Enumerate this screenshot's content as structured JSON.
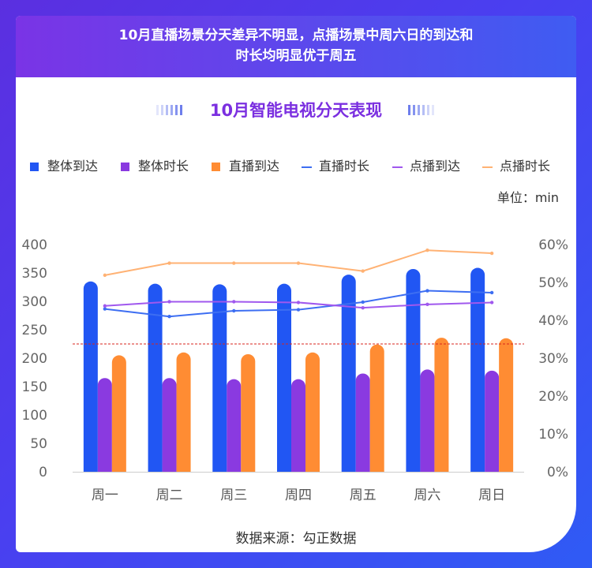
{
  "banner": {
    "line1": "10月直播场景分天差异不明显，点播场景中周六日的到达和",
    "line2": "时长均明显优于周五"
  },
  "unit_label": "单位：min",
  "source": "数据来源：勾正数据",
  "colors": {
    "整体到达": "#2156f3",
    "整体时长": "#8a3ae0",
    "直播到达": "#ff8c33",
    "直播时长": "#3d6ef2",
    "点播到达": "#a058ee",
    "点播时长": "#ffb274",
    "reference": "#d9261c"
  },
  "chart_data": {
    "type": "bar",
    "title": "10月智能电视分天表现",
    "categories": [
      "周一",
      "周二",
      "周三",
      "周四",
      "周五",
      "周六",
      "周日"
    ],
    "series": [
      {
        "name": "整体到达",
        "kind": "bar",
        "axis": "left",
        "values": [
          335,
          331,
          330,
          331,
          347,
          357,
          359
        ]
      },
      {
        "name": "整体时长",
        "kind": "bar",
        "axis": "left",
        "values": [
          165,
          165,
          163,
          163,
          173,
          180,
          178
        ]
      },
      {
        "name": "直播到达",
        "kind": "bar",
        "axis": "left",
        "values": [
          205,
          210,
          207,
          210,
          224,
          236,
          235
        ]
      },
      {
        "name": "直播时长",
        "kind": "line",
        "axis": "right",
        "values": [
          43,
          41,
          42.5,
          42.8,
          44.8,
          47.8,
          47.3
        ]
      },
      {
        "name": "点播到达",
        "kind": "line",
        "axis": "right",
        "values": [
          43.8,
          44.9,
          44.9,
          44.7,
          43.3,
          44.2,
          44.7
        ]
      },
      {
        "name": "点播时长",
        "kind": "line",
        "axis": "right",
        "values": [
          51.9,
          55.1,
          55.1,
          55.1,
          53,
          58.5,
          57.7
        ]
      }
    ],
    "reference_line": 225,
    "ylim_left": [
      0,
      400
    ],
    "ylim_right": [
      0,
      60
    ],
    "yticks_left": [
      "0",
      "50",
      "100",
      "150",
      "200",
      "250",
      "300",
      "350",
      "400"
    ],
    "yticks_right": [
      "0%",
      "10%",
      "20%",
      "30%",
      "40%",
      "50%",
      "60%"
    ],
    "xlabel": "",
    "ylabel": ""
  }
}
